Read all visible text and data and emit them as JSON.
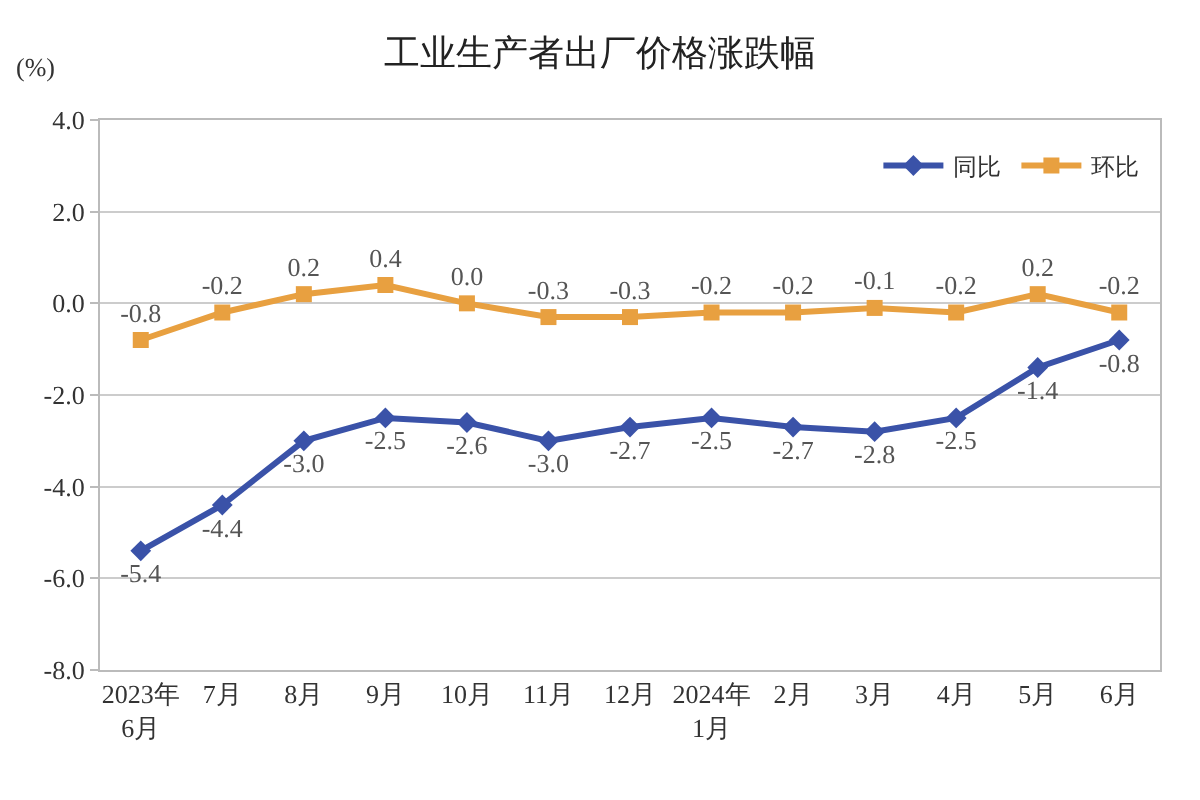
{
  "chart_data": {
    "type": "line",
    "title": "工业生产者出厂价格涨跌幅",
    "ylabel": "(%)",
    "categories": [
      "2023年\n6月",
      "7月",
      "8月",
      "9月",
      "10月",
      "11月",
      "12月",
      "2024年\n1月",
      "2月",
      "3月",
      "4月",
      "5月",
      "6月"
    ],
    "series": [
      {
        "name": "同比",
        "color": "#3a52a8",
        "marker": "diamond",
        "values": [
          -5.4,
          -4.4,
          -3.0,
          -2.5,
          -2.6,
          -3.0,
          -2.7,
          -2.5,
          -2.7,
          -2.8,
          -2.5,
          -1.4,
          -0.8
        ],
        "value_labels": [
          "-5.4",
          "-4.4",
          "-3.0",
          "-2.5",
          "-2.6",
          "-3.0",
          "-2.7",
          "-2.5",
          "-2.7",
          "-2.8",
          "-2.5",
          "-1.4",
          "-0.8"
        ]
      },
      {
        "name": "环比",
        "color": "#e8a040",
        "marker": "square",
        "values": [
          -0.8,
          -0.2,
          0.2,
          0.4,
          0.0,
          -0.3,
          -0.3,
          -0.2,
          -0.2,
          -0.1,
          -0.2,
          0.2,
          -0.2
        ],
        "value_labels": [
          "-0.8",
          "-0.2",
          "0.2",
          "0.4",
          "0.0",
          "-0.3",
          "-0.3",
          "-0.2",
          "-0.2",
          "-0.1",
          "-0.2",
          "0.2",
          "-0.2"
        ]
      }
    ],
    "ylim": [
      -8,
      4
    ],
    "yticks": [
      {
        "value": -8,
        "label": "-8.0"
      },
      {
        "value": -6,
        "label": "-6.0"
      },
      {
        "value": -4,
        "label": "-4.0"
      },
      {
        "value": -2,
        "label": "-2.0"
      },
      {
        "value": 0,
        "label": "0.0"
      },
      {
        "value": 2,
        "label": "2.0"
      },
      {
        "value": 4,
        "label": "4.0"
      }
    ],
    "grid": "y",
    "legend": "top right"
  }
}
